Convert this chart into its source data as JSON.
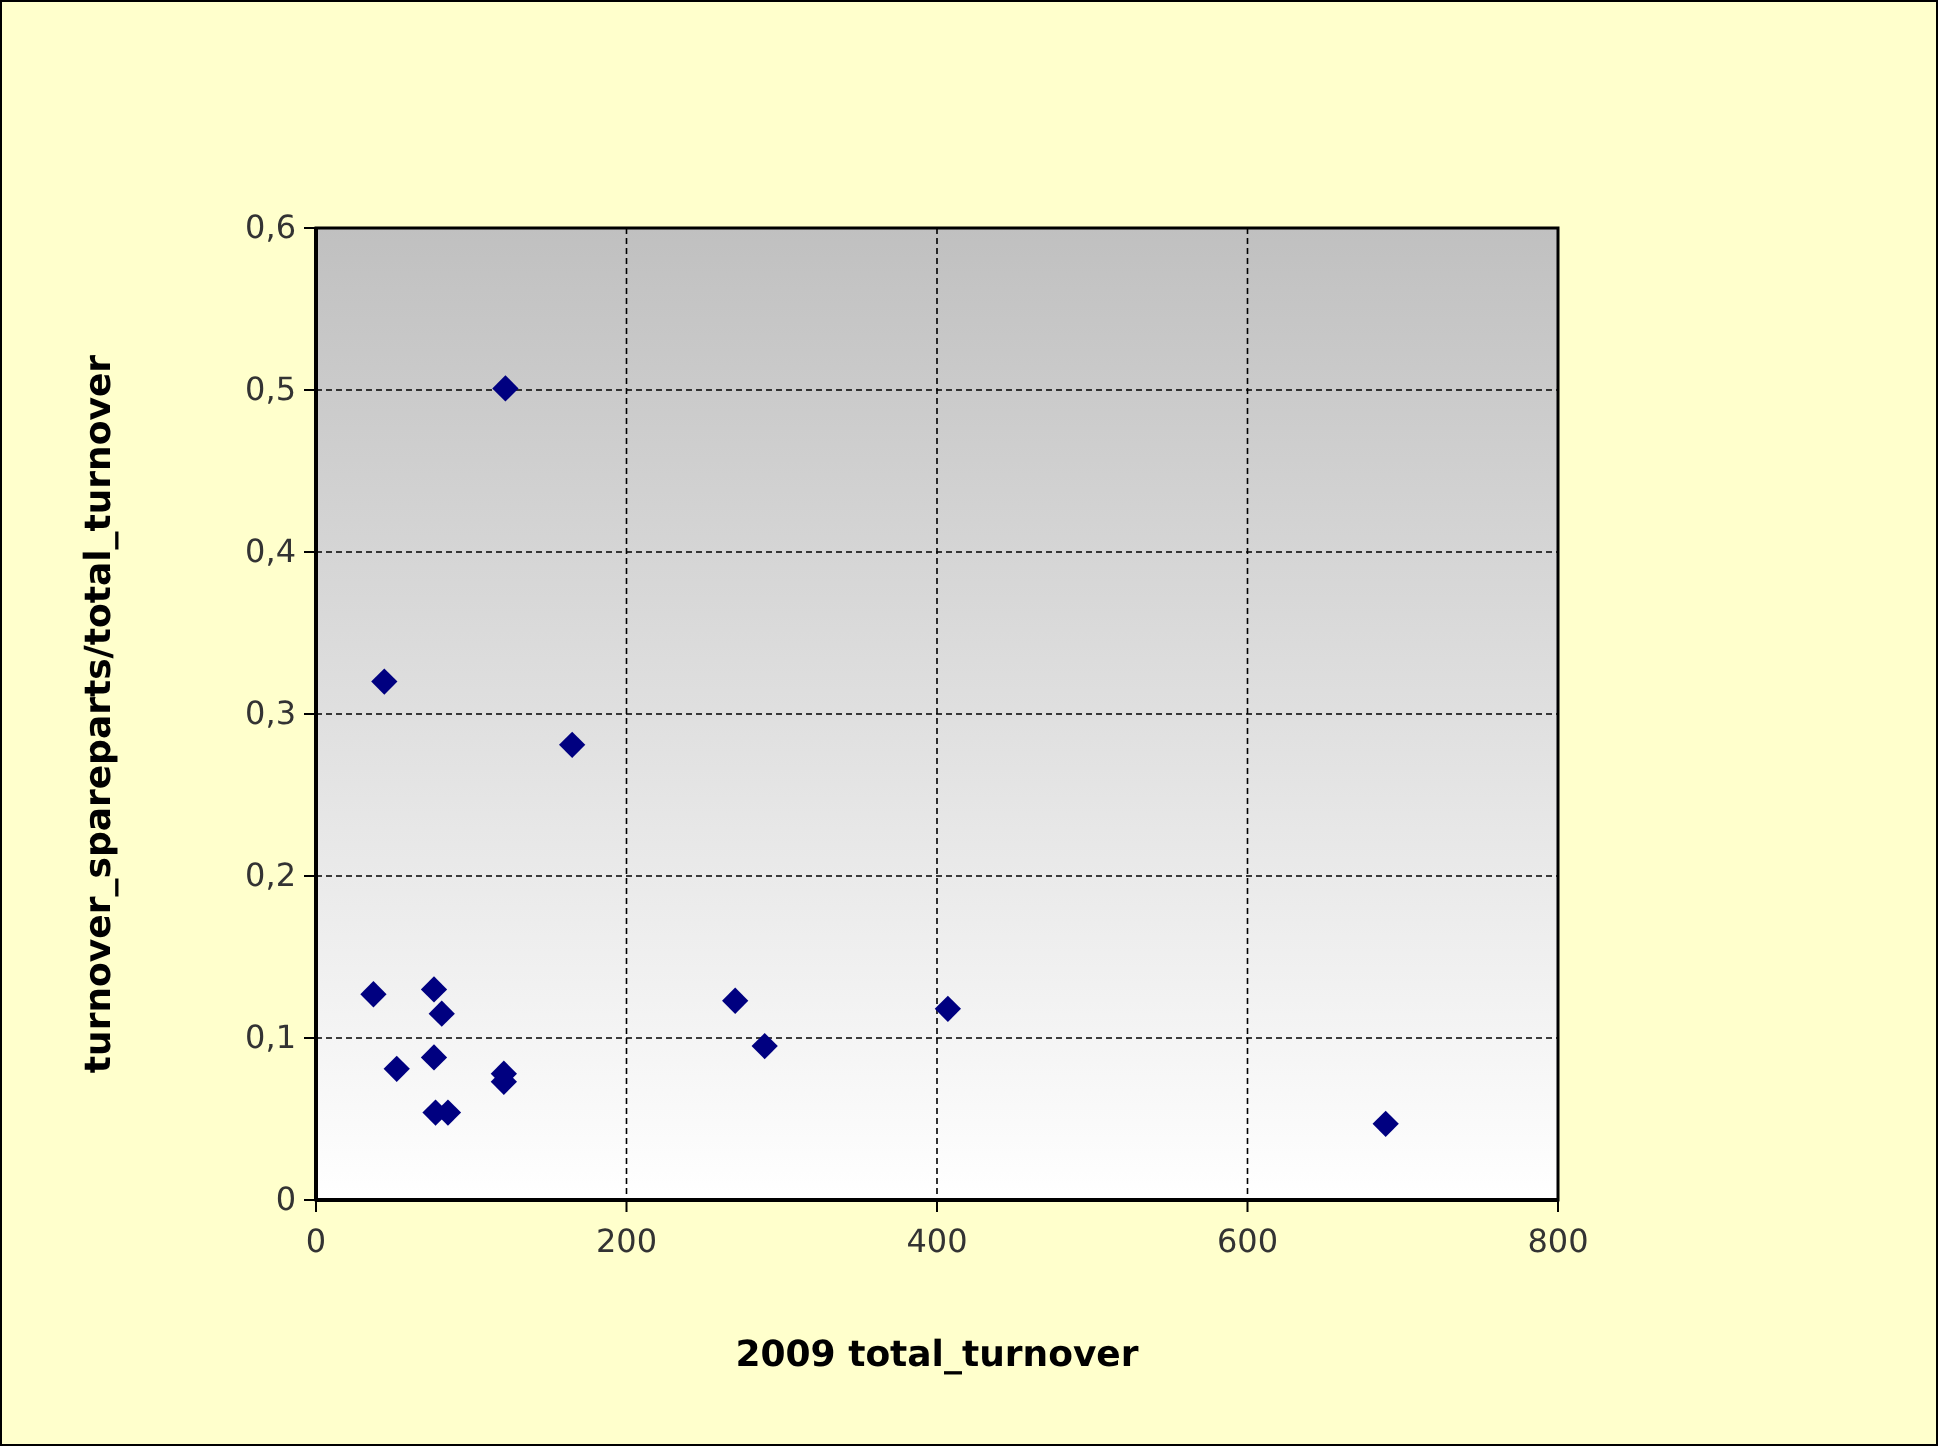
{
  "chart_data": {
    "type": "scatter",
    "xlabel": "2009 total_turnover",
    "ylabel": "turnover_spareparts/total_turnover",
    "x": [
      122,
      44,
      165,
      37,
      76,
      81,
      270,
      289,
      407,
      52,
      76,
      121,
      121,
      77,
      85,
      689
    ],
    "series": [
      {
        "color": "#000080",
        "values": [
          0.501,
          0.32,
          0.281,
          0.127,
          0.13,
          0.115,
          0.123,
          0.095,
          0.118,
          0.081,
          0.088,
          0.078,
          0.073,
          0.054,
          0.054,
          0.047
        ]
      }
    ],
    "xlim": [
      0,
      800
    ],
    "xticks": [
      0,
      200,
      400,
      600,
      800
    ],
    "ylim": [
      0,
      0.6
    ],
    "yticks": [
      {
        "value": 0,
        "label": "0"
      },
      {
        "value": 0.1,
        "label": "0,1"
      },
      {
        "value": 0.2,
        "label": "0,2"
      },
      {
        "value": 0.3,
        "label": "0,3"
      },
      {
        "value": 0.4,
        "label": "0,4"
      },
      {
        "value": 0.5,
        "label": "0,5"
      },
      {
        "value": 0.6,
        "label": "0,6"
      }
    ],
    "grid": true,
    "marker": "diamond"
  }
}
